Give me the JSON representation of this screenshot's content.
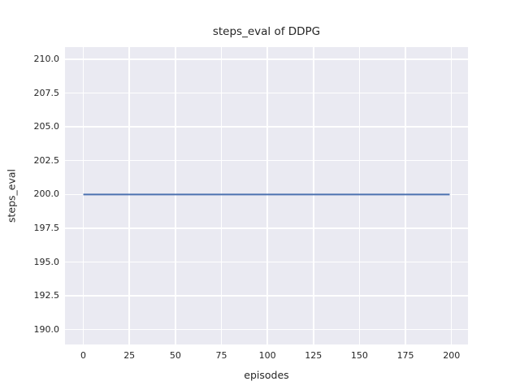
{
  "figure": {
    "background": "#ffffff"
  },
  "chart_data": {
    "type": "line",
    "title": "steps_eval of DDPG",
    "xlabel": "episodes",
    "ylabel": "steps_eval",
    "xlim": [
      -9.95,
      208.95
    ],
    "ylim": [
      188.9,
      210.9
    ],
    "grid": true,
    "legend": false,
    "x_tick_values": [
      0,
      25,
      50,
      75,
      100,
      125,
      150,
      175,
      200
    ],
    "x_tick_labels": [
      "0",
      "25",
      "50",
      "75",
      "100",
      "125",
      "150",
      "175",
      "200"
    ],
    "y_tick_values": [
      190.0,
      192.5,
      195.0,
      197.5,
      200.0,
      202.5,
      205.0,
      207.5,
      210.0
    ],
    "y_tick_labels": [
      "190.0",
      "192.5",
      "195.0",
      "197.5",
      "200.0",
      "202.5",
      "205.0",
      "207.5",
      "210.0"
    ],
    "series": [
      {
        "name": "DDPG",
        "color": "#4c72b0",
        "linewidth": 2,
        "x": [
          0,
          199
        ],
        "y": [
          200,
          200
        ]
      }
    ],
    "colors": {
      "axes_background": "#eaeaf2",
      "grid": "#ffffff",
      "text": "#262626",
      "figure_background": "#ffffff"
    }
  }
}
